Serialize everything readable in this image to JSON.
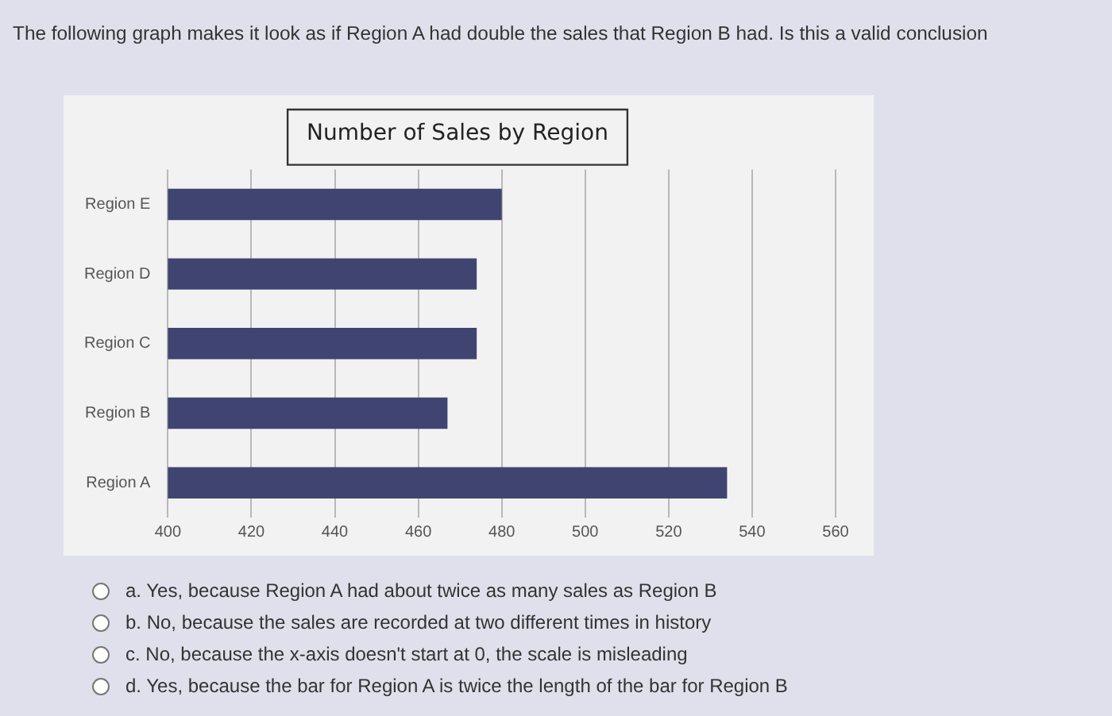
{
  "chart_data": {
    "type": "bar",
    "orientation": "horizontal",
    "title": "Number of Sales by Region",
    "categories": [
      "Region E",
      "Region D",
      "Region C",
      "Region B",
      "Region A"
    ],
    "values": [
      480,
      474,
      474,
      467,
      534
    ],
    "color": "#3f4470",
    "xlim": [
      400,
      560
    ],
    "xticks": [
      400,
      420,
      440,
      460,
      480,
      500,
      520,
      540,
      560
    ],
    "grid": "x",
    "annotations": [
      "The following graph makes it look as if Region A had double the sales that Region B had. Is this a valid conclusion",
      "a.  Yes, because Region A had about twice as many sales as Region B",
      "b.  No, because the sales are recorded at two different times in history",
      "c.  No, because the x-axis doesn't start at 0, the scale is misleading",
      "d.  Yes, because the bar for Region A is twice the length of the bar for Region B"
    ]
  }
}
